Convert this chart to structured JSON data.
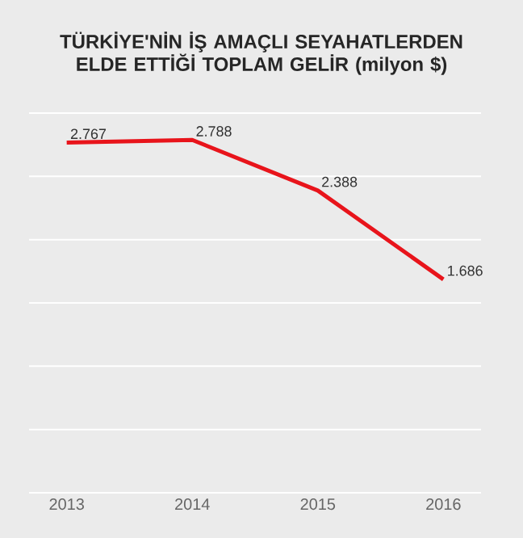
{
  "chart_data": {
    "type": "line",
    "title": "TÜRKİYE'NİN İŞ AMAÇLI SEYAHATLERDEN ELDE ETTİĞİ TOPLAM GELİR (milyon $)",
    "categories": [
      "2013",
      "2014",
      "2015",
      "2016"
    ],
    "values": [
      2767,
      2788,
      2388,
      1686
    ],
    "value_labels": [
      "2.767",
      "2.788",
      "2.388",
      "1.686"
    ],
    "color": "#e8141b",
    "ylim": [
      0,
      3000
    ],
    "yticks": [
      {
        "value": 0,
        "label": null
      },
      {
        "value": 500,
        "label": null
      },
      {
        "value": 1000,
        "label": null
      },
      {
        "value": 1500,
        "label": null
      },
      {
        "value": 2000,
        "label": null
      },
      {
        "value": 2500,
        "label": null
      },
      {
        "value": 3000,
        "label": null
      }
    ],
    "grid": "y",
    "marker": "none",
    "line_style": "solid",
    "tick_labels": "x"
  }
}
